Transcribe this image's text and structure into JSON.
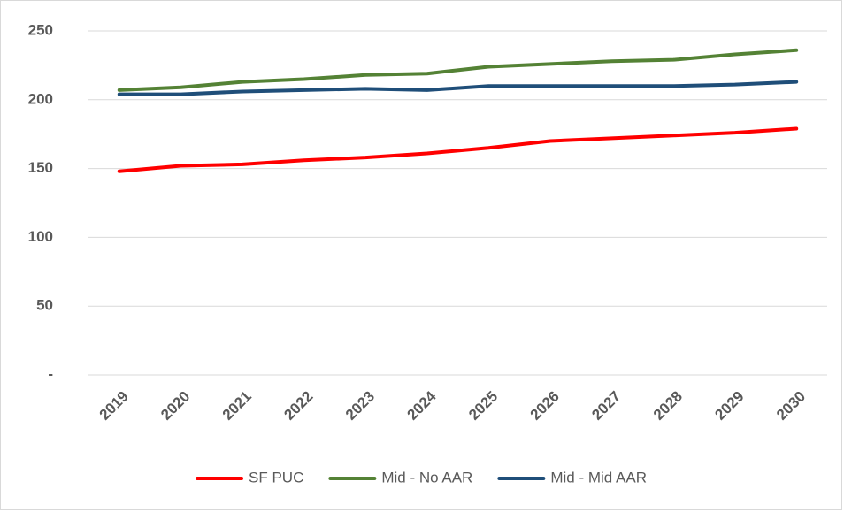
{
  "chart_data": {
    "type": "line",
    "categories": [
      "2019",
      "2020",
      "2021",
      "2022",
      "2023",
      "2024",
      "2025",
      "2026",
      "2027",
      "2028",
      "2029",
      "2030"
    ],
    "series": [
      {
        "name": "SF PUC",
        "color": "#ff0000",
        "values": [
          148,
          152,
          153,
          156,
          158,
          161,
          165,
          170,
          172,
          174,
          176,
          179
        ]
      },
      {
        "name": "Mid - No AAR",
        "color": "#548235",
        "values": [
          207,
          209,
          213,
          215,
          218,
          219,
          224,
          226,
          228,
          229,
          233,
          236
        ]
      },
      {
        "name": "Mid - Mid AAR",
        "color": "#1f4e79",
        "values": [
          204,
          204,
          206,
          207,
          208,
          207,
          210,
          210,
          210,
          210,
          211,
          213
        ]
      }
    ],
    "ylim": [
      0,
      250
    ],
    "yticks": [
      {
        "value": 0,
        "label": "-"
      },
      50,
      100,
      150,
      200,
      250
    ],
    "grid": true,
    "legend": "bottom"
  }
}
